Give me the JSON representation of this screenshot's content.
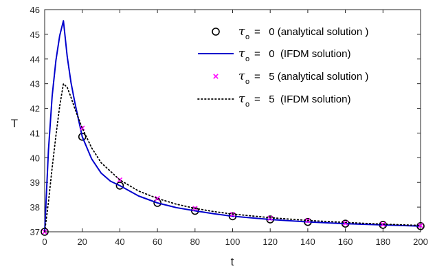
{
  "chart_data": {
    "type": "line",
    "xlabel": "t",
    "ylabel": "T",
    "xlim": [
      0,
      200
    ],
    "ylim": [
      37,
      46
    ],
    "xticks": [
      0,
      20,
      40,
      60,
      80,
      100,
      120,
      140,
      160,
      180,
      200
    ],
    "yticks": [
      37,
      38,
      39,
      40,
      41,
      42,
      43,
      44,
      45,
      46
    ],
    "grid": false,
    "legend_position": "top-right",
    "series": [
      {
        "name": "τo = 0 (analytical solution )",
        "tau_symbol": "τ",
        "tau_subscript": "o",
        "legend_label": "=   0 (analytical solution )",
        "style": "circle-markers",
        "color": "#000000",
        "x": [
          0,
          20,
          40,
          60,
          80,
          100,
          120,
          140,
          160,
          180,
          200
        ],
        "y": [
          37.0,
          40.85,
          38.87,
          38.17,
          37.85,
          37.63,
          37.5,
          37.4,
          37.33,
          37.28,
          37.23
        ]
      },
      {
        "name": "τo = 0 (IFDM solution)",
        "tau_symbol": "τ",
        "tau_subscript": "o",
        "legend_label": "=   0  (IFDM solution)",
        "style": "solid-line",
        "color": "#0000cc",
        "x": [
          0,
          2,
          4,
          6,
          8,
          10,
          12,
          14,
          16,
          18,
          20,
          25,
          30,
          35,
          40,
          50,
          60,
          70,
          80,
          90,
          100,
          120,
          140,
          160,
          180,
          200
        ],
        "y": [
          37.0,
          40.3,
          42.5,
          43.95,
          44.95,
          45.55,
          44.1,
          43.05,
          42.25,
          41.55,
          40.85,
          39.95,
          39.38,
          39.05,
          38.87,
          38.45,
          38.17,
          37.98,
          37.85,
          37.73,
          37.63,
          37.5,
          37.4,
          37.33,
          37.28,
          37.23
        ]
      },
      {
        "name": "τo = 5 (analytical solution )",
        "tau_symbol": "τ",
        "tau_subscript": "o",
        "legend_label": "=   5 (analytical solution )",
        "style": "x-markers",
        "color": "#ff00ff",
        "x": [
          0,
          20,
          40,
          60,
          80,
          100,
          120,
          140,
          160,
          180,
          200
        ],
        "y": [
          37.0,
          41.2,
          39.1,
          38.35,
          37.95,
          37.7,
          37.55,
          37.45,
          37.35,
          37.3,
          37.25
        ]
      },
      {
        "name": "τo = 5 (IFDM solution)",
        "tau_symbol": "τ",
        "tau_subscript": "o",
        "legend_label": "=   5  (IFDM solution)",
        "style": "dotted-line",
        "color": "#000000",
        "x": [
          0,
          2,
          4,
          6,
          8,
          10,
          12,
          14,
          16,
          18,
          20,
          25,
          30,
          40,
          50,
          60,
          70,
          80,
          90,
          100,
          120,
          140,
          160,
          180,
          200
        ],
        "y": [
          37.0,
          38.2,
          39.6,
          40.9,
          42.1,
          43.0,
          42.85,
          42.45,
          42.0,
          41.6,
          41.2,
          40.4,
          39.8,
          39.1,
          38.65,
          38.35,
          38.12,
          37.95,
          37.82,
          37.72,
          37.57,
          37.46,
          37.38,
          37.31,
          37.26
        ]
      }
    ]
  }
}
